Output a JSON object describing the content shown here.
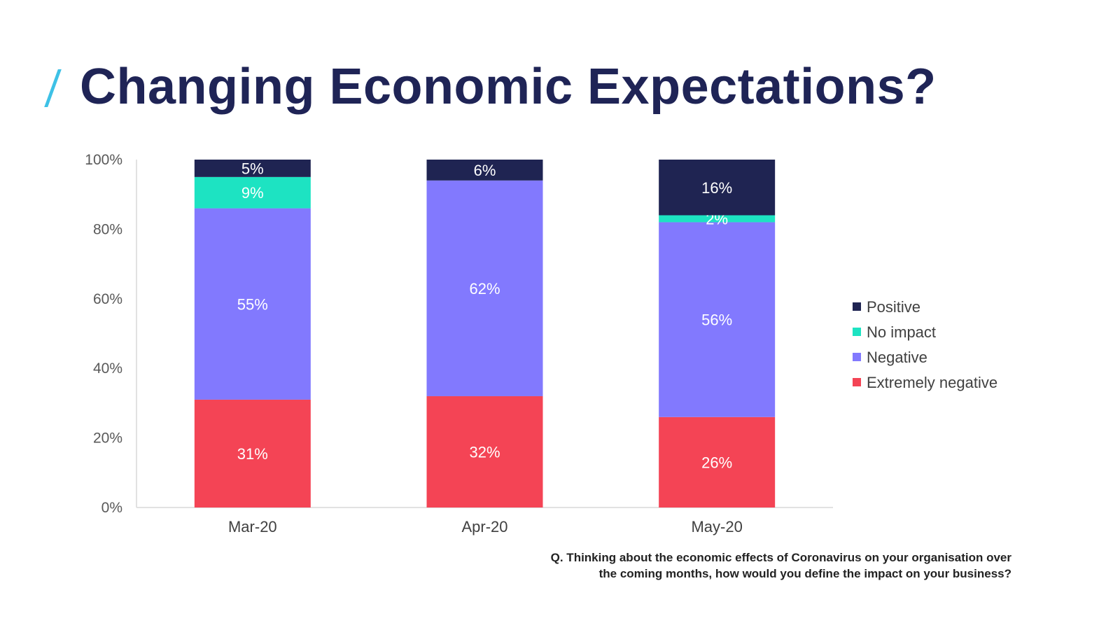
{
  "title": "Changing Economic Expectations?",
  "question": {
    "line1": "Q. Thinking about the economic effects of Coronavirus on your organisation over",
    "line2": "the coming months, how would you define the impact on your business?"
  },
  "chart_data": {
    "type": "bar",
    "stacked": true,
    "categories": [
      "Mar-20",
      "Apr-20",
      "May-20"
    ],
    "ylim": [
      0,
      100
    ],
    "yticks": [
      "0%",
      "20%",
      "40%",
      "60%",
      "80%",
      "100%"
    ],
    "legend_position": "right",
    "series": [
      {
        "name": "Extremely negative",
        "color": "#f44455",
        "values": [
          31,
          32,
          26
        ],
        "labels": [
          "31%",
          "32%",
          "26%"
        ]
      },
      {
        "name": "Negative",
        "color": "#8279fe",
        "values": [
          55,
          62,
          56
        ],
        "labels": [
          "55%",
          "62%",
          "56%"
        ]
      },
      {
        "name": "No impact",
        "color": "#1de3c2",
        "values": [
          9,
          0,
          2
        ],
        "labels": [
          "9%",
          "",
          "2%"
        ]
      },
      {
        "name": "Positive",
        "color": "#1f2452",
        "values": [
          5,
          6,
          16
        ],
        "labels": [
          "5%",
          "6%",
          "16%"
        ]
      }
    ],
    "legend_order": [
      "Positive",
      "No impact",
      "Negative",
      "Extremely negative"
    ]
  }
}
